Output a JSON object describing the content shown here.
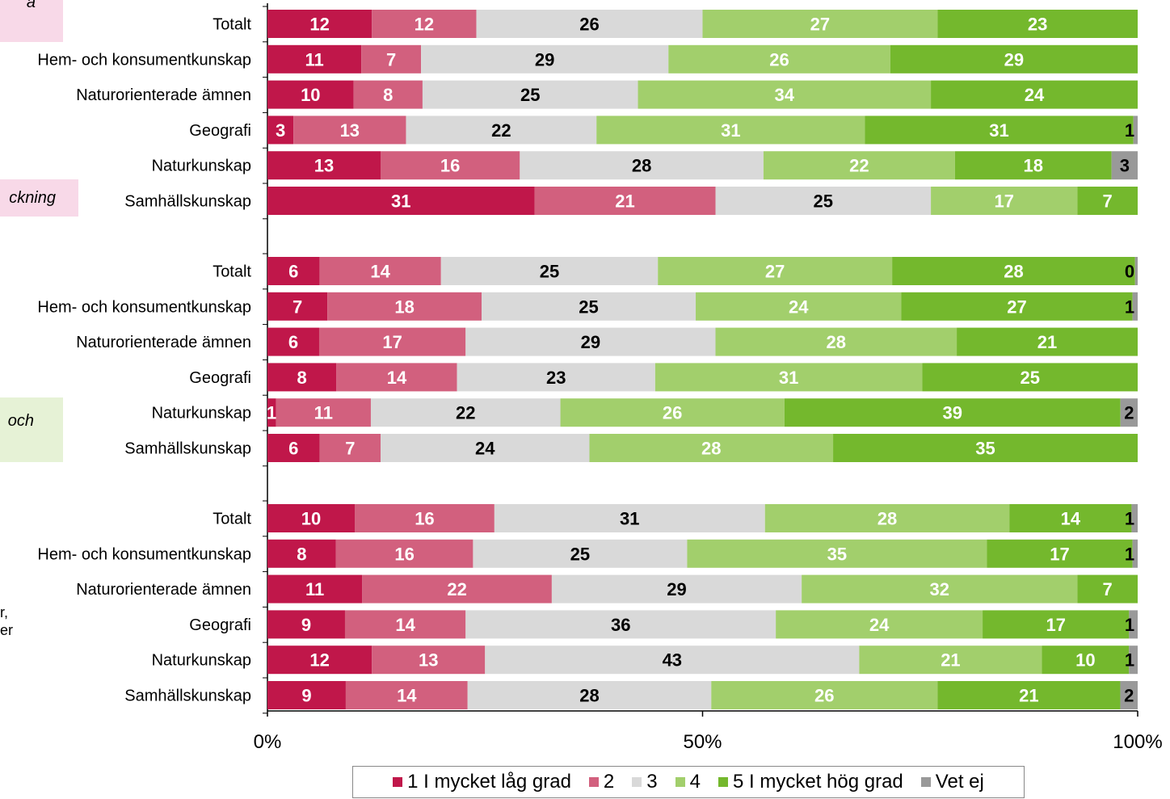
{
  "side_labels": {
    "group1": "a",
    "group2": "ckning",
    "group3": "och",
    "note1": "r,",
    "note2": "er"
  },
  "chart_data": {
    "type": "bar",
    "orientation": "horizontal-stacked-100",
    "x_ticks": [
      "0%",
      "50%",
      "100%"
    ],
    "xlim": [
      0,
      100
    ],
    "legend_placement": "bottom",
    "series": [
      {
        "name": "1 I mycket låg grad",
        "color": "#c0174a"
      },
      {
        "name": "2",
        "color": "#d2607e"
      },
      {
        "name": "3",
        "color": "#d9d9d9"
      },
      {
        "name": "4",
        "color": "#a2cf6c"
      },
      {
        "name": "5 I mycket hög grad",
        "color": "#74b82d"
      },
      {
        "name": "Vet ej",
        "color": "#999999"
      }
    ],
    "groups": [
      {
        "rows": [
          {
            "label": "Totalt",
            "values": [
              12,
              12,
              26,
              27,
              23,
              0
            ],
            "labels": [
              "12",
              "12",
              "26",
              "27",
              "23",
              ""
            ]
          },
          {
            "label": "Hem- och konsumentkunskap",
            "values": [
              11,
              7,
              29,
              26,
              29,
              0
            ],
            "labels": [
              "11",
              "7",
              "29",
              "26",
              "29",
              ""
            ]
          },
          {
            "label": "Naturorienterade ämnen",
            "values": [
              10,
              8,
              25,
              34,
              24,
              0
            ],
            "labels": [
              "10",
              "8",
              "25",
              "34",
              "24",
              ""
            ]
          },
          {
            "label": "Geografi",
            "values": [
              3,
              13,
              22,
              31,
              31,
              0.5
            ],
            "labels": [
              "3",
              "13",
              "22",
              "31",
              "31",
              "1"
            ]
          },
          {
            "label": "Naturkunskap",
            "values": [
              13,
              16,
              28,
              22,
              18,
              3
            ],
            "labels": [
              "13",
              "16",
              "28",
              "22",
              "18",
              "3"
            ]
          },
          {
            "label": "Samhällskunskap",
            "values": [
              31,
              21,
              25,
              17,
              7,
              0
            ],
            "labels": [
              "31",
              "21",
              "25",
              "17",
              "7",
              ""
            ]
          }
        ]
      },
      {
        "rows": [
          {
            "label": "Totalt",
            "values": [
              6,
              14,
              25,
              27,
              28,
              0.3
            ],
            "labels": [
              "6",
              "14",
              "25",
              "27",
              "28",
              "0"
            ]
          },
          {
            "label": "Hem- och konsumentkunskap",
            "values": [
              7,
              18,
              25,
              24,
              27,
              0.6
            ],
            "labels": [
              "7",
              "18",
              "25",
              "24",
              "27",
              "1"
            ]
          },
          {
            "label": "Naturorienterade ämnen",
            "values": [
              6,
              17,
              29,
              28,
              21,
              0
            ],
            "labels": [
              "6",
              "17",
              "29",
              "28",
              "21",
              ""
            ]
          },
          {
            "label": "Geografi",
            "values": [
              8,
              14,
              23,
              31,
              25,
              0
            ],
            "labels": [
              "8",
              "14",
              "23",
              "31",
              "25",
              ""
            ]
          },
          {
            "label": "Naturkunskap",
            "values": [
              1,
              11,
              22,
              26,
              39,
              2
            ],
            "labels": [
              "1",
              "11",
              "22",
              "26",
              "39",
              "2"
            ]
          },
          {
            "label": "Samhällskunskap",
            "values": [
              6,
              7,
              24,
              28,
              35,
              0
            ],
            "labels": [
              "6",
              "7",
              "24",
              "28",
              "35",
              ""
            ]
          }
        ]
      },
      {
        "rows": [
          {
            "label": "Totalt",
            "values": [
              10,
              16,
              31,
              28,
              14,
              0.7
            ],
            "labels": [
              "10",
              "16",
              "31",
              "28",
              "14",
              "1"
            ]
          },
          {
            "label": "Hem- och konsumentkunskap",
            "values": [
              8,
              16,
              25,
              35,
              17,
              0.6
            ],
            "labels": [
              "8",
              "16",
              "25",
              "35",
              "17",
              "1"
            ]
          },
          {
            "label": "Naturorienterade ämnen",
            "values": [
              11,
              22,
              29,
              32,
              7,
              0
            ],
            "labels": [
              "11",
              "22",
              "29",
              "32",
              "7",
              ""
            ]
          },
          {
            "label": "Geografi",
            "values": [
              9,
              14,
              36,
              24,
              17,
              1
            ],
            "labels": [
              "9",
              "14",
              "36",
              "24",
              "17",
              "1"
            ]
          },
          {
            "label": "Naturkunskap",
            "values": [
              12,
              13,
              43,
              21,
              10,
              1
            ],
            "labels": [
              "12",
              "13",
              "43",
              "21",
              "10",
              "1"
            ]
          },
          {
            "label": "Samhällskunskap",
            "values": [
              9,
              14,
              28,
              26,
              21,
              2
            ],
            "labels": [
              "9",
              "14",
              "28",
              "26",
              "21",
              "2"
            ]
          }
        ]
      }
    ]
  }
}
